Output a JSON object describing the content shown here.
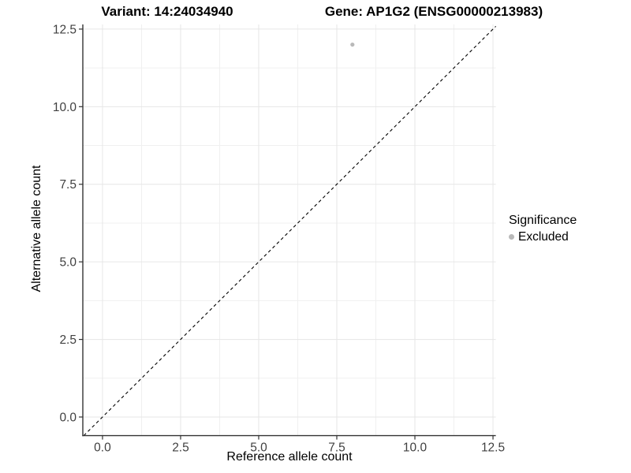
{
  "titles": {
    "variant": "Variant: 14:24034940",
    "gene": "Gene: AP1G2 (ENSG00000213983)"
  },
  "chart_data": {
    "type": "scatter",
    "title_left": "Variant: 14:24034940",
    "title_right": "Gene: AP1G2 (ENSG00000213983)",
    "xlabel": "Reference allele count",
    "ylabel": "Alternative allele count",
    "xlim": [
      -0.63,
      12.59
    ],
    "ylim": [
      -0.6,
      12.65
    ],
    "xticks": [
      0,
      2.5,
      5,
      7.5,
      10,
      12.5
    ],
    "xtick_labels": [
      "0.0",
      "2.5",
      "5.0",
      "7.5",
      "10.0",
      "12.5"
    ],
    "yticks": [
      0,
      2.5,
      5,
      7.5,
      10,
      12.5
    ],
    "ytick_labels": [
      "0.0",
      "2.5",
      "5.0",
      "7.5",
      "10.0",
      "12.5"
    ],
    "xticks_minor": [
      1.25,
      3.75,
      6.25,
      8.75,
      11.25
    ],
    "yticks_minor": [
      1.25,
      3.75,
      6.25,
      8.75,
      11.25
    ],
    "grid": true,
    "points": [
      {
        "x": 8,
        "y": 12,
        "series": "Excluded"
      }
    ],
    "reference_line": {
      "type": "identity",
      "style": "dashed",
      "color": "#000000"
    },
    "legend": {
      "position": "right",
      "title": "Significance",
      "items": [
        {
          "label": "Excluded",
          "color": "#b9b9b9"
        }
      ]
    }
  },
  "colors": {
    "point": "#b9b9b9",
    "grid_major": "#e6e6e6",
    "grid_minor": "#f0f0f0",
    "axis_line": "#333333",
    "tick_mark": "#333333",
    "tick_label": "#404040",
    "background": "#ffffff"
  }
}
